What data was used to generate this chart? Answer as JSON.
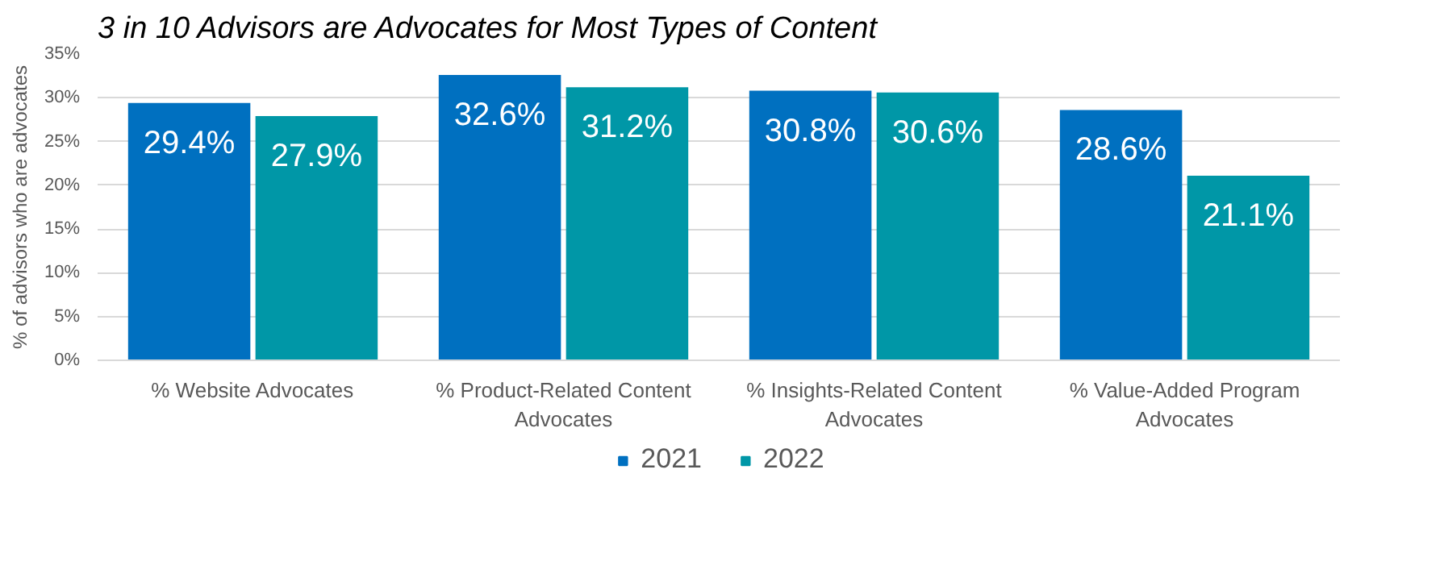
{
  "chart_data": {
    "type": "bar",
    "title": "3 in 10 Advisors are Advocates for Most Types of Content",
    "ylabel": "% of advisors who are advocates",
    "categories": [
      "% Website Advocates",
      "% Product-Related Content Advocates",
      "% Insights-Related Content Advocates",
      "% Value-Added Program Advocates"
    ],
    "series": [
      {
        "name": "2021",
        "color": "#0070c0",
        "values": [
          29.4,
          32.6,
          30.8,
          28.6
        ],
        "value_labels": [
          "29.4%",
          "32.6%",
          "30.8%",
          "28.6%"
        ]
      },
      {
        "name": "2022",
        "color": "#0097a7",
        "values": [
          27.9,
          31.2,
          30.6,
          21.1
        ],
        "value_labels": [
          "27.9%",
          "31.2%",
          "30.6%",
          "21.1%"
        ]
      }
    ],
    "ylim": [
      0,
      35
    ],
    "yticks": [
      {
        "value": 0,
        "label": "0%"
      },
      {
        "value": 5,
        "label": "5%"
      },
      {
        "value": 10,
        "label": "10%"
      },
      {
        "value": 15,
        "label": "15%"
      },
      {
        "value": 20,
        "label": "20%"
      },
      {
        "value": 25,
        "label": "25%"
      },
      {
        "value": 30,
        "label": "30%"
      },
      {
        "value": 35,
        "label": "35%"
      }
    ],
    "grid": "y",
    "legend": "bottom"
  }
}
